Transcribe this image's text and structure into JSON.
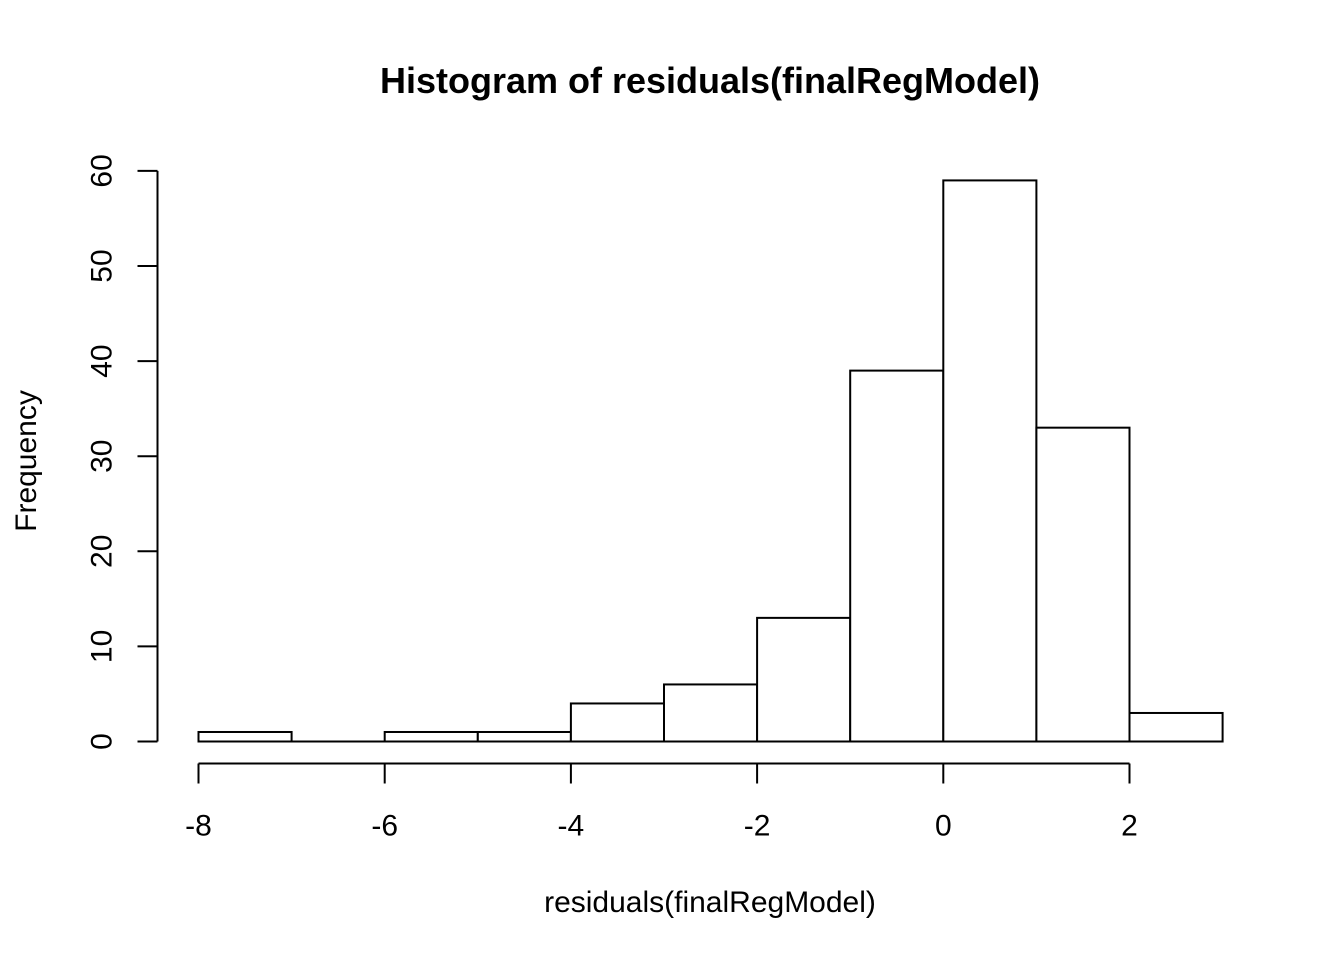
{
  "chart_data": {
    "type": "bar",
    "title": "Histogram of residuals(finalRegModel)",
    "xlabel": "residuals(finalRegModel)",
    "ylabel": "Frequency",
    "bins": [
      {
        "from": -8,
        "to": -7,
        "count": 1
      },
      {
        "from": -7,
        "to": -6,
        "count": 0
      },
      {
        "from": -6,
        "to": -5,
        "count": 1
      },
      {
        "from": -5,
        "to": -4,
        "count": 1
      },
      {
        "from": -4,
        "to": -3,
        "count": 4
      },
      {
        "from": -3,
        "to": -2,
        "count": 6
      },
      {
        "from": -2,
        "to": -1,
        "count": 13
      },
      {
        "from": -1,
        "to": 0,
        "count": 39
      },
      {
        "from": 0,
        "to": 1,
        "count": 59
      },
      {
        "from": 1,
        "to": 2,
        "count": 33
      },
      {
        "from": 2,
        "to": 3,
        "count": 3
      }
    ],
    "xlim": [
      -8,
      3
    ],
    "ylim": [
      0,
      60
    ],
    "xticks": [
      -8,
      -6,
      -4,
      -2,
      0,
      2
    ],
    "xtick_labels": [
      "-8",
      "-6",
      "-4",
      "-2",
      "0",
      "2"
    ],
    "yticks": [
      0,
      10,
      20,
      30,
      40,
      50,
      60
    ],
    "ytick_labels": [
      "0",
      "10",
      "20",
      "30",
      "40",
      "50",
      "60"
    ],
    "grid": false,
    "legend": "none",
    "bar_fill": "#ffffff",
    "bar_stroke": "#000000"
  }
}
